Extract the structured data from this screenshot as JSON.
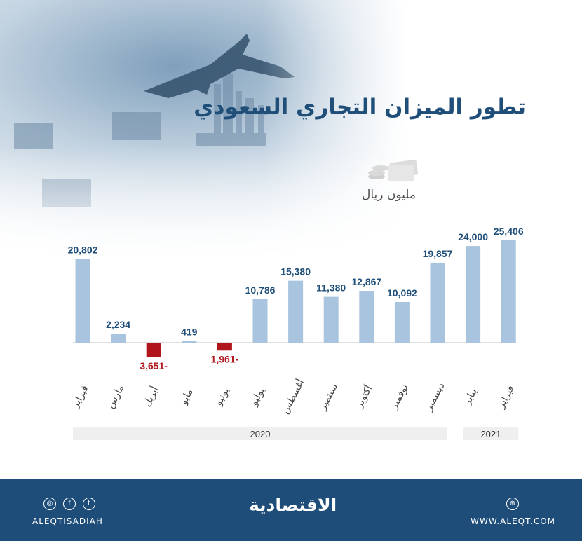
{
  "title": "تطور الميزان التجاري السعودي",
  "unit_label": "مليون ريال",
  "colors": {
    "positive": "#a9c4de",
    "negative": "#b0151c",
    "value_text_positive": "#1f4e79",
    "value_text_negative": "#b0151c",
    "footer": "#1e4d7a"
  },
  "footer": {
    "logo": "الاقتصادية",
    "social_handle": "ALEQTISADIAH",
    "site_url": "WWW.ALEQT.COM",
    "icons": [
      "instagram-icon",
      "facebook-icon",
      "twitter-icon",
      "globe-icon"
    ]
  },
  "chart_data": {
    "type": "bar",
    "title": "تطور الميزان التجاري السعودي",
    "ylabel": "مليون ريال",
    "categories": [
      "فبراير",
      "مارس",
      "أبريل",
      "مايو",
      "يونيو",
      "يوليو",
      "أغسطس",
      "سبتمبر",
      "أكتوبر",
      "نوفمبر",
      "ديسمبر",
      "يناير",
      "فبراير"
    ],
    "values": [
      20802,
      2234,
      -3651,
      419,
      -1961,
      10786,
      15380,
      11380,
      12867,
      10092,
      19857,
      24000,
      25406
    ],
    "value_labels": [
      "20,802",
      "2,234",
      "3,651-",
      "419",
      "1,961-",
      "10,786",
      "15,380",
      "11,380",
      "12,867",
      "10,092",
      "19,857",
      "24,000",
      "25,406"
    ],
    "year_groups": [
      {
        "label": "2020",
        "from": 0,
        "to": 10
      },
      {
        "label": "2021",
        "from": 11,
        "to": 12
      }
    ],
    "ylim": [
      -3651,
      25406
    ],
    "grid": false,
    "legend": "none"
  }
}
